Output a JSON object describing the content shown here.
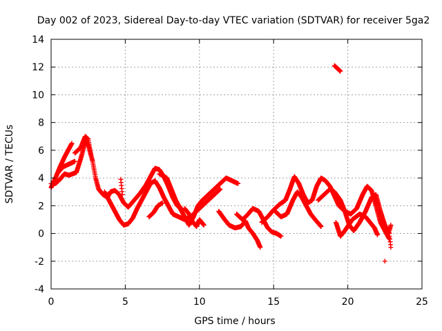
{
  "chart_data": {
    "type": "scatter",
    "title": "Day 002 of 2023, Sidereal Day-to-day VTEC variation (SDTVAR) for receiver 5ga2",
    "xlabel": "GPS time / hours",
    "ylabel": "SDTVAR / TECUs",
    "xlim": [
      0,
      25
    ],
    "ylim": [
      -4,
      14
    ],
    "xticks": [
      0,
      5,
      10,
      15,
      20,
      25
    ],
    "yticks": [
      -4,
      -2,
      0,
      2,
      4,
      6,
      8,
      10,
      12,
      14
    ],
    "grid": true,
    "marker": "+",
    "series": [
      {
        "name": "SDTVAR",
        "color": "#ff0000",
        "tracks": [
          [
            [
              0.0,
              3.3
            ],
            [
              0.3,
              4.0
            ],
            [
              0.6,
              4.8
            ],
            [
              0.9,
              5.5
            ],
            [
              1.2,
              6.1
            ],
            [
              1.4,
              6.5
            ]
          ],
          [
            [
              0.0,
              3.6
            ],
            [
              0.3,
              3.6
            ],
            [
              0.6,
              3.9
            ],
            [
              0.9,
              4.3
            ],
            [
              1.2,
              4.2
            ],
            [
              1.7,
              4.4
            ],
            [
              2.0,
              5.4
            ],
            [
              2.3,
              6.6
            ],
            [
              2.5,
              6.4
            ],
            [
              2.8,
              5.2
            ],
            [
              3.0,
              4.0
            ],
            [
              3.2,
              3.2
            ],
            [
              3.5,
              2.8
            ],
            [
              3.8,
              2.6
            ],
            [
              4.0,
              3.0
            ],
            [
              4.3,
              3.1
            ],
            [
              4.6,
              2.8
            ],
            [
              4.9,
              2.2
            ],
            [
              5.2,
              1.9
            ],
            [
              5.6,
              2.4
            ],
            [
              6.0,
              2.9
            ],
            [
              6.4,
              3.5
            ],
            [
              6.7,
              4.1
            ],
            [
              7.0,
              4.7
            ],
            [
              7.3,
              4.6
            ],
            [
              7.6,
              4.1
            ],
            [
              7.9,
              3.4
            ],
            [
              8.2,
              2.6
            ],
            [
              8.5,
              2.0
            ],
            [
              8.8,
              1.8
            ]
          ],
          [
            [
              1.6,
              5.8
            ],
            [
              2.0,
              6.2
            ],
            [
              2.3,
              7.0
            ],
            [
              2.5,
              6.8
            ],
            [
              2.7,
              5.6
            ]
          ],
          [
            [
              0.4,
              4.3
            ],
            [
              0.8,
              4.8
            ],
            [
              1.2,
              5.0
            ],
            [
              1.6,
              5.2
            ]
          ],
          [
            [
              3.6,
              3.0
            ],
            [
              4.0,
              2.2
            ],
            [
              4.3,
              1.6
            ],
            [
              4.6,
              1.0
            ],
            [
              4.9,
              0.6
            ],
            [
              5.2,
              0.7
            ],
            [
              5.5,
              1.1
            ],
            [
              5.8,
              1.8
            ],
            [
              6.1,
              2.4
            ],
            [
              6.4,
              3.0
            ],
            [
              6.7,
              3.6
            ],
            [
              7.0,
              3.8
            ],
            [
              7.3,
              3.3
            ],
            [
              7.6,
              2.6
            ],
            [
              7.9,
              2.0
            ],
            [
              8.2,
              1.4
            ],
            [
              8.6,
              1.2
            ],
            [
              9.0,
              1.0
            ],
            [
              9.4,
              1.2
            ],
            [
              9.8,
              1.6
            ],
            [
              10.2,
              2.0
            ],
            [
              10.6,
              2.4
            ],
            [
              11.0,
              2.8
            ],
            [
              11.4,
              3.2
            ]
          ],
          [
            [
              6.6,
              1.2
            ],
            [
              6.9,
              1.5
            ],
            [
              7.2,
              2.0
            ],
            [
              7.5,
              2.2
            ]
          ],
          [
            [
              4.7,
              3.9
            ],
            [
              4.8,
              2.8
            ]
          ],
          [
            [
              7.3,
              4.3
            ],
            [
              7.8,
              4.0
            ],
            [
              8.1,
              3.2
            ],
            [
              8.4,
              2.4
            ],
            [
              8.8,
              1.6
            ],
            [
              9.1,
              1.0
            ],
            [
              9.3,
              0.6
            ],
            [
              9.6,
              1.2
            ],
            [
              9.9,
              2.0
            ],
            [
              10.2,
              2.4
            ],
            [
              10.6,
              2.8
            ],
            [
              11.0,
              3.2
            ],
            [
              11.4,
              3.6
            ],
            [
              11.8,
              4.0
            ],
            [
              12.2,
              3.8
            ],
            [
              12.6,
              3.6
            ]
          ],
          [
            [
              9.0,
              1.8
            ],
            [
              9.3,
              1.4
            ],
            [
              9.5,
              0.9
            ],
            [
              9.8,
              0.5
            ],
            [
              10.0,
              1.0
            ],
            [
              10.3,
              0.6
            ]
          ],
          [
            [
              11.3,
              1.6
            ],
            [
              11.7,
              1.0
            ],
            [
              12.0,
              0.6
            ],
            [
              12.4,
              0.4
            ],
            [
              12.8,
              0.5
            ],
            [
              13.1,
              0.9
            ],
            [
              13.3,
              0.4
            ],
            [
              13.6,
              0.0
            ],
            [
              13.9,
              -0.5
            ],
            [
              14.1,
              -1.0
            ]
          ],
          [
            [
              12.5,
              1.4
            ],
            [
              12.9,
              1.0
            ],
            [
              13.2,
              1.3
            ],
            [
              13.6,
              1.8
            ],
            [
              14.0,
              1.6
            ],
            [
              14.3,
              1.0
            ],
            [
              14.6,
              0.4
            ],
            [
              14.9,
              0.1
            ],
            [
              15.2,
              0.0
            ],
            [
              15.5,
              -0.2
            ]
          ],
          [
            [
              14.2,
              0.8
            ],
            [
              14.6,
              1.2
            ],
            [
              15.0,
              1.7
            ],
            [
              15.4,
              2.1
            ],
            [
              15.8,
              2.4
            ],
            [
              16.1,
              3.2
            ],
            [
              16.4,
              4.1
            ],
            [
              16.7,
              3.6
            ],
            [
              17.0,
              2.8
            ],
            [
              17.3,
              2.2
            ],
            [
              17.6,
              2.4
            ],
            [
              17.9,
              3.4
            ],
            [
              18.2,
              4.0
            ],
            [
              18.5,
              3.8
            ],
            [
              18.8,
              3.4
            ],
            [
              19.1,
              2.7
            ],
            [
              19.4,
              2.0
            ],
            [
              19.8,
              1.6
            ],
            [
              20.2,
              1.4
            ],
            [
              20.6,
              1.8
            ],
            [
              21.0,
              2.8
            ],
            [
              21.3,
              3.4
            ],
            [
              21.6,
              3.1
            ],
            [
              21.9,
              2.0
            ],
            [
              22.2,
              0.8
            ],
            [
              22.5,
              0.2
            ],
            [
              22.8,
              -0.4
            ]
          ],
          [
            [
              15.1,
              1.6
            ],
            [
              15.5,
              1.2
            ],
            [
              15.9,
              1.4
            ],
            [
              16.3,
              2.4
            ],
            [
              16.6,
              3.0
            ],
            [
              16.9,
              2.6
            ],
            [
              17.2,
              2.0
            ],
            [
              17.5,
              1.4
            ],
            [
              17.8,
              1.0
            ],
            [
              18.2,
              0.5
            ]
          ],
          [
            [
              18.0,
              2.4
            ],
            [
              18.4,
              2.8
            ],
            [
              18.8,
              3.2
            ],
            [
              19.1,
              3.0
            ],
            [
              19.5,
              2.4
            ],
            [
              19.8,
              1.6
            ],
            [
              20.1,
              0.6
            ],
            [
              20.4,
              0.2
            ],
            [
              20.8,
              0.8
            ],
            [
              21.2,
              1.6
            ],
            [
              21.6,
              2.6
            ],
            [
              21.9,
              2.8
            ],
            [
              22.2,
              1.6
            ],
            [
              22.5,
              0.6
            ],
            [
              22.8,
              0.0
            ],
            [
              22.9,
              -1.0
            ]
          ],
          [
            [
              19.2,
              0.8
            ],
            [
              19.5,
              -0.2
            ],
            [
              19.8,
              0.2
            ],
            [
              20.3,
              1.0
            ],
            [
              20.8,
              1.4
            ],
            [
              21.2,
              1.2
            ],
            [
              21.5,
              0.8
            ],
            [
              21.8,
              0.4
            ],
            [
              22.0,
              -0.1
            ]
          ],
          [
            [
              22.8,
              0.2
            ],
            [
              22.9,
              0.6
            ]
          ],
          [
            [
              22.5,
              -2.0
            ]
          ],
          [
            [
              19.1,
              12.1
            ],
            [
              19.5,
              11.7
            ]
          ]
        ]
      }
    ]
  }
}
